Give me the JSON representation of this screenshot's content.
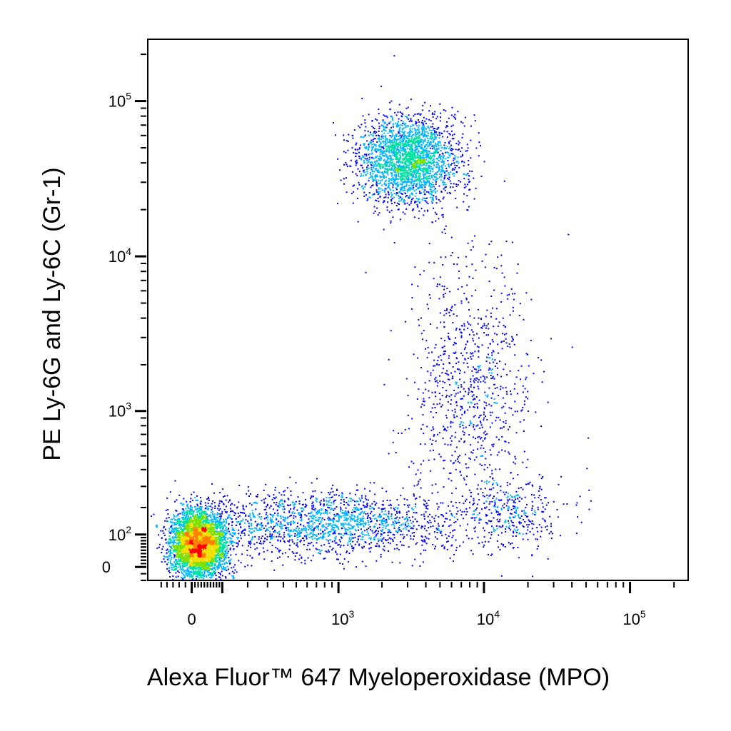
{
  "chart_data": {
    "type": "scatter",
    "subtype": "flow-cytometry-density-dot-plot",
    "title": "",
    "xlabel": "Alexa Fluor™ 647  Myeloperoxidase (MPO)",
    "ylabel": "PE  Ly-6G and Ly-6C (Gr-1)",
    "x_scale": "biexponential",
    "y_scale": "biexponential",
    "x_ticks": [
      {
        "base": "0",
        "exp": "",
        "value": 0
      },
      {
        "base": "10",
        "exp": "3",
        "value": 1000
      },
      {
        "base": "10",
        "exp": "4",
        "value": 10000
      },
      {
        "base": "10",
        "exp": "5",
        "value": 100000
      }
    ],
    "y_ticks": [
      {
        "base": "0",
        "exp": "",
        "value": 0
      },
      {
        "base": "10",
        "exp": "2",
        "value": 100
      },
      {
        "base": "10",
        "exp": "3",
        "value": 1000
      },
      {
        "base": "10",
        "exp": "4",
        "value": 10000
      },
      {
        "base": "10",
        "exp": "5",
        "value": 100000
      }
    ],
    "xlim": [
      -150,
      250000
    ],
    "ylim": [
      -40,
      250000
    ],
    "grid": false,
    "color_scale": [
      "#0000ff",
      "#00b4ff",
      "#00e0a0",
      "#7fe000",
      "#f0e000",
      "#ff8000",
      "#ff0000"
    ],
    "populations": [
      {
        "name": "",
        "x_center": 20,
        "y_center": 70,
        "x_spread": 45,
        "y_spread": 55,
        "events": 4200
      },
      {
        "name": "",
        "x_center": 3000,
        "y_center": 42000,
        "x_spread": 1400,
        "y_spread": 16000,
        "events": 2600
      },
      {
        "name": "",
        "x_center": 8000,
        "y_center": 1500,
        "x_spread": 5000,
        "y_spread": 2500,
        "events": 900
      },
      {
        "name": "",
        "x_center": 800,
        "y_center": 140,
        "x_spread": 1500,
        "y_spread": 60,
        "events": 1800
      },
      {
        "name": "",
        "x_center": 15000,
        "y_center": 180,
        "x_spread": 8000,
        "y_spread": 80,
        "events": 350
      }
    ]
  }
}
